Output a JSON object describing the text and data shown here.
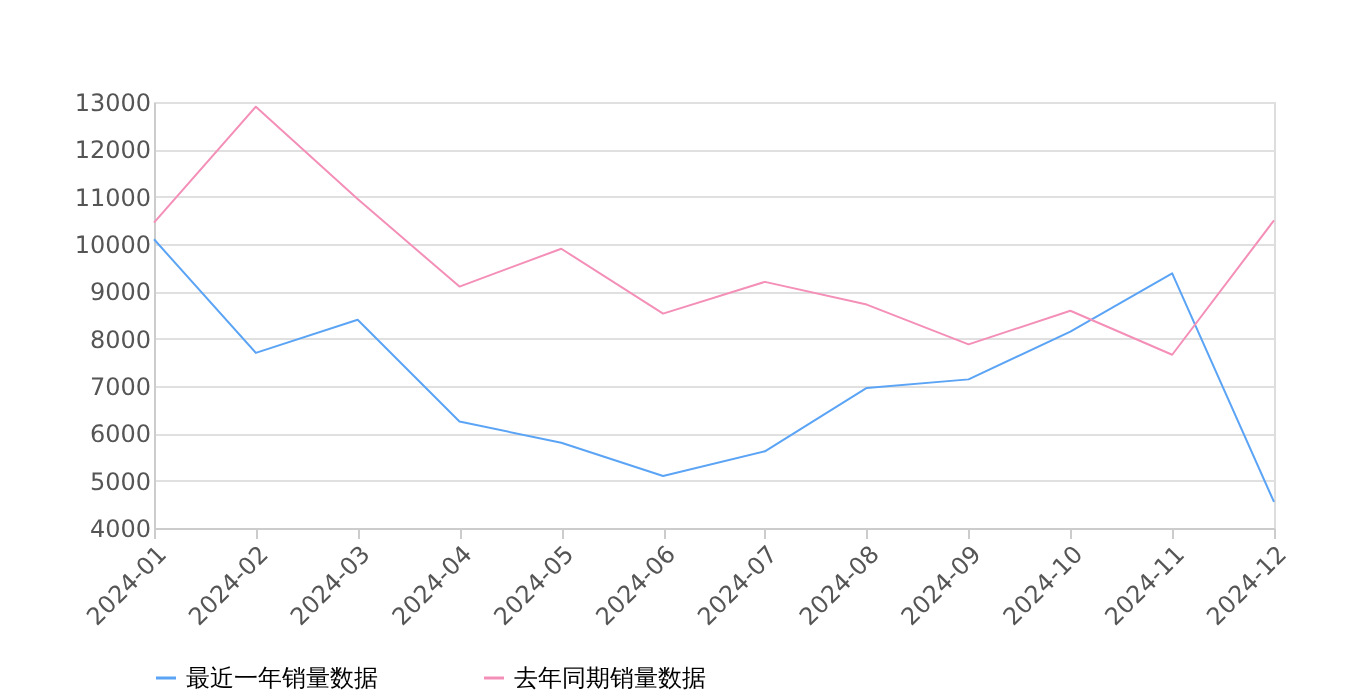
{
  "chart_data": {
    "type": "line",
    "categories": [
      "2024-01",
      "2024-02",
      "2024-03",
      "2024-04",
      "2024-05",
      "2024-06",
      "2024-07",
      "2024-08",
      "2024-09",
      "2024-10",
      "2024-11",
      "2024-12"
    ],
    "series": [
      {
        "name": "最近一年销量数据",
        "color": "#5ba4f5",
        "values": [
          10100,
          7700,
          8400,
          6250,
          5800,
          5100,
          5620,
          6960,
          7140,
          8150,
          9380,
          4550
        ]
      },
      {
        "name": "去年同期销量数据",
        "color": "#f48fb8",
        "values": [
          10450,
          12900,
          10950,
          9100,
          9900,
          8530,
          9200,
          8720,
          7880,
          8590,
          7660,
          10500
        ]
      }
    ],
    "ylim": [
      4000,
      13000
    ],
    "yticks": [
      4000,
      5000,
      6000,
      7000,
      8000,
      9000,
      10000,
      11000,
      12000,
      13000
    ],
    "grid": "y",
    "legend": "bottom",
    "marker": "none",
    "line_style": "solid"
  }
}
